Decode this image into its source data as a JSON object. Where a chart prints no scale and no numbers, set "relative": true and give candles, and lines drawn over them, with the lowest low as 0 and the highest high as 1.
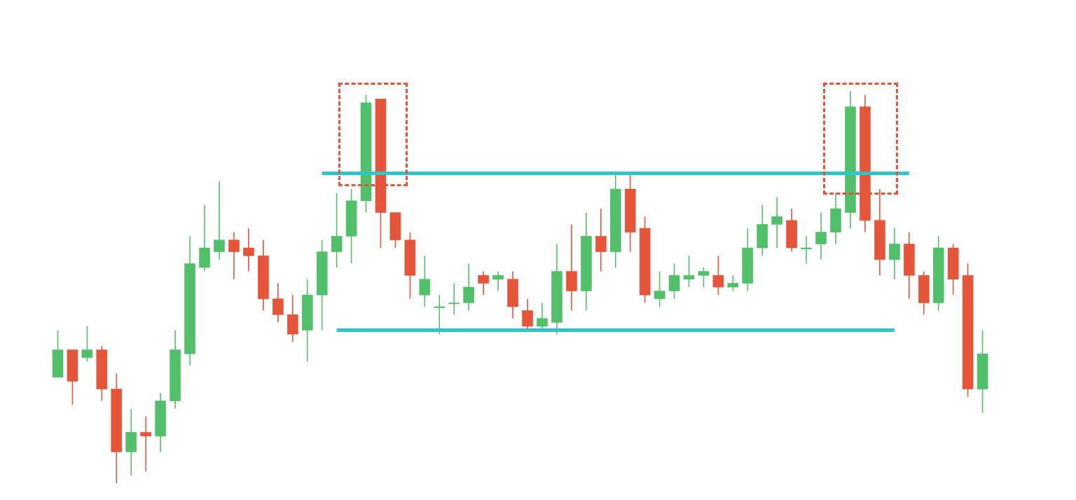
{
  "chart_data": {
    "type": "candlestick",
    "relative": true,
    "categories": [
      null,
      null,
      null,
      null,
      null,
      null,
      null,
      null,
      null,
      null,
      null,
      null,
      null,
      null,
      null,
      null,
      null,
      null,
      null,
      null,
      null,
      null,
      null,
      null,
      null,
      null,
      null,
      null,
      null,
      null,
      null,
      null,
      null,
      null,
      null,
      null,
      null,
      null,
      null,
      null,
      null,
      null,
      null,
      null,
      null,
      null,
      null,
      null,
      null,
      null,
      null,
      null,
      null,
      null,
      null,
      null,
      null,
      null,
      null,
      null,
      null,
      null,
      null,
      null
    ],
    "ohlc": [
      [
        0.27,
        0.39,
        0.27,
        0.34
      ],
      [
        0.34,
        0.34,
        0.2,
        0.26
      ],
      [
        0.32,
        0.4,
        0.31,
        0.34
      ],
      [
        0.34,
        0.35,
        0.21,
        0.24
      ],
      [
        0.24,
        0.28,
        0,
        0.08
      ],
      [
        0.08,
        0.19,
        0.02,
        0.13
      ],
      [
        0.13,
        0.17,
        0.03,
        0.12
      ],
      [
        0.12,
        0.23,
        0.08,
        0.21
      ],
      [
        0.21,
        0.39,
        0.19,
        0.34
      ],
      [
        0.33,
        0.63,
        0.3,
        0.56
      ],
      [
        0.55,
        0.71,
        0.54,
        0.6
      ],
      [
        0.59,
        0.77,
        0.57,
        0.62
      ],
      [
        0.62,
        0.64,
        0.52,
        0.59
      ],
      [
        0.6,
        0.65,
        0.54,
        0.58
      ],
      [
        0.58,
        0.62,
        0.44,
        0.47
      ],
      [
        0.47,
        0.51,
        0.41,
        0.43
      ],
      [
        0.43,
        0.48,
        0.36,
        0.38
      ],
      [
        0.39,
        0.52,
        0.31,
        0.48
      ],
      [
        0.48,
        0.62,
        0.39,
        0.59
      ],
      [
        0.59,
        0.74,
        0.55,
        0.63
      ],
      [
        0.63,
        0.75,
        0.56,
        0.72
      ],
      [
        0.72,
        0.99,
        0.69,
        0.97
      ],
      [
        0.98,
        0.98,
        0.6,
        0.69
      ],
      [
        0.69,
        0.69,
        0.6,
        0.62
      ],
      [
        0.62,
        0.64,
        0.47,
        0.53
      ],
      [
        0.48,
        0.58,
        0.45,
        0.52
      ],
      [
        0.45,
        0.48,
        0.38,
        0.45
      ],
      [
        0.46,
        0.51,
        0.43,
        0.46
      ],
      [
        0.46,
        0.56,
        0.44,
        0.5
      ],
      [
        0.53,
        0.54,
        0.48,
        0.51
      ],
      [
        0.52,
        0.54,
        0.49,
        0.53
      ],
      [
        0.52,
        0.54,
        0.42,
        0.45
      ],
      [
        0.44,
        0.47,
        0.39,
        0.4
      ],
      [
        0.4,
        0.46,
        0.39,
        0.42
      ],
      [
        0.41,
        0.61,
        0.38,
        0.54
      ],
      [
        0.54,
        0.66,
        0.44,
        0.49
      ],
      [
        0.49,
        0.69,
        0.44,
        0.63
      ],
      [
        0.63,
        0.7,
        0.54,
        0.59
      ],
      [
        0.59,
        0.79,
        0.55,
        0.75
      ],
      [
        0.75,
        0.79,
        0.59,
        0.64
      ],
      [
        0.65,
        0.68,
        0.46,
        0.48
      ],
      [
        0.47,
        0.54,
        0.45,
        0.49
      ],
      [
        0.49,
        0.56,
        0.47,
        0.53
      ],
      [
        0.52,
        0.58,
        0.5,
        0.53
      ],
      [
        0.53,
        0.55,
        0.5,
        0.54
      ],
      [
        0.53,
        0.58,
        0.48,
        0.5
      ],
      [
        0.5,
        0.53,
        0.49,
        0.51
      ],
      [
        0.51,
        0.65,
        0.49,
        0.6
      ],
      [
        0.6,
        0.71,
        0.58,
        0.66
      ],
      [
        0.66,
        0.73,
        0.6,
        0.68
      ],
      [
        0.67,
        0.7,
        0.59,
        0.6
      ],
      [
        0.6,
        0.63,
        0.56,
        0.6
      ],
      [
        0.61,
        0.69,
        0.57,
        0.64
      ],
      [
        0.64,
        0.74,
        0.61,
        0.7
      ],
      [
        0.69,
        1,
        0.65,
        0.96
      ],
      [
        0.96,
        0.99,
        0.64,
        0.67
      ],
      [
        0.67,
        0.75,
        0.53,
        0.57
      ],
      [
        0.57,
        0.65,
        0.52,
        0.61
      ],
      [
        0.61,
        0.64,
        0.47,
        0.53
      ],
      [
        0.53,
        0.54,
        0.43,
        0.46
      ],
      [
        0.46,
        0.63,
        0.44,
        0.6
      ],
      [
        0.6,
        0.61,
        0.48,
        0.52
      ],
      [
        0.53,
        0.56,
        0.22,
        0.24
      ],
      [
        0.24,
        0.39,
        0.18,
        0.33
      ]
    ],
    "colors": [
      "#52bf6a",
      "#e5553a",
      "#52bf6a",
      "#e5553a",
      "#e5553a",
      "#52bf6a",
      "#e5553a",
      "#52bf6a",
      "#52bf6a",
      "#52bf6a",
      "#52bf6a",
      "#52bf6a",
      "#e5553a",
      "#e5553a",
      "#e5553a",
      "#e5553a",
      "#e5553a",
      "#52bf6a",
      "#52bf6a",
      "#52bf6a",
      "#52bf6a",
      "#52bf6a",
      "#e5553a",
      "#e5553a",
      "#e5553a",
      "#52bf6a",
      "#52bf6a",
      "#52bf6a",
      "#52bf6a",
      "#e5553a",
      "#52bf6a",
      "#e5553a",
      "#e5553a",
      "#52bf6a",
      "#52bf6a",
      "#e5553a",
      "#52bf6a",
      "#e5553a",
      "#52bf6a",
      "#e5553a",
      "#e5553a",
      "#52bf6a",
      "#52bf6a",
      "#52bf6a",
      "#52bf6a",
      "#e5553a",
      "#52bf6a",
      "#52bf6a",
      "#52bf6a",
      "#52bf6a",
      "#e5553a",
      "#52bf6a",
      "#52bf6a",
      "#52bf6a",
      "#52bf6a",
      "#e5553a",
      "#e5553a",
      "#52bf6a",
      "#e5553a",
      "#e5553a",
      "#52bf6a",
      "#e5553a",
      "#e5553a",
      "#52bf6a"
    ],
    "series": [
      {
        "type": "line",
        "color": "#2ec4c8",
        "values": [
          null,
          null,
          null,
          null,
          null,
          null,
          null,
          null,
          null,
          null,
          null,
          null,
          null,
          null,
          null,
          null,
          null,
          null,
          0.79,
          0.79,
          0.79,
          0.79,
          0.79,
          0.79,
          0.79,
          0.79,
          0.79,
          0.79,
          0.79,
          0.79,
          0.79,
          0.79,
          0.79,
          0.79,
          0.79,
          0.79,
          0.79,
          0.79,
          0.79,
          0.79,
          0.79,
          0.79,
          0.79,
          0.79,
          0.79,
          0.79,
          0.79,
          0.79,
          0.79,
          0.79,
          0.79,
          0.79,
          0.79,
          0.79,
          0.79,
          0.79,
          0.79,
          0.79,
          0.79,
          null,
          null,
          null,
          null,
          null
        ]
      },
      {
        "type": "line",
        "color": "#2ec4c8",
        "values": [
          null,
          null,
          null,
          null,
          null,
          null,
          null,
          null,
          null,
          null,
          null,
          null,
          null,
          null,
          null,
          null,
          null,
          null,
          null,
          0.39,
          0.39,
          0.39,
          0.39,
          0.39,
          0.39,
          0.39,
          0.39,
          0.39,
          0.39,
          0.39,
          0.39,
          0.39,
          0.39,
          0.39,
          0.39,
          0.39,
          0.39,
          0.39,
          0.39,
          0.39,
          0.39,
          0.39,
          0.39,
          0.39,
          0.39,
          0.39,
          0.39,
          0.39,
          0.39,
          0.39,
          0.39,
          0.39,
          0.39,
          0.39,
          0.39,
          0.39,
          0.39,
          0.39,
          null,
          null,
          null,
          null,
          null,
          null
        ]
      }
    ]
  }
}
